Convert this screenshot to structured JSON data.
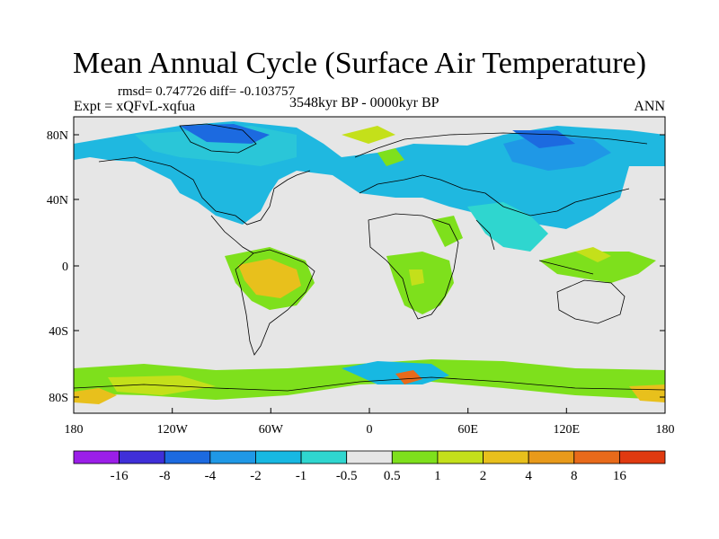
{
  "title": "Mean Annual Cycle (Surface Air Temperature)",
  "stats_line": "rmsd= 0.747726 diff= -0.103757",
  "experiment": "Expt = xQFvL-xqfua",
  "period": "3548kyr BP - 0000kyr BP",
  "season": "ANN",
  "lat_ticks": [
    "80N",
    "40N",
    "0",
    "40S",
    "80S"
  ],
  "lon_ticks": [
    "180",
    "120W",
    "60W",
    "0",
    "60E",
    "120E",
    "180"
  ],
  "colorbar": {
    "labels": [
      "-16",
      "-8",
      "-4",
      "-2",
      "-1",
      "-0.5",
      "0.5",
      "1",
      "2",
      "4",
      "8",
      "16"
    ],
    "colors": [
      "#9b1ee8",
      "#3f2fd8",
      "#1c6ae0",
      "#1f98e6",
      "#17b8e2",
      "#2fd6cf",
      "#e6e6e6",
      "#7ee01c",
      "#c4e01a",
      "#e8c01c",
      "#e89a1a",
      "#e86a1a",
      "#e03a10"
    ]
  },
  "colors": {
    "land_outline": "#000000",
    "background_field": "#e6e6e6",
    "cool": "#1fa0e8",
    "cool_light": "#2fd6cf",
    "deep_cool": "#1c6ae0",
    "warm_green": "#7ee01c",
    "warm_yellow": "#c4e01a",
    "warm_orange": "#e8c01c"
  }
}
